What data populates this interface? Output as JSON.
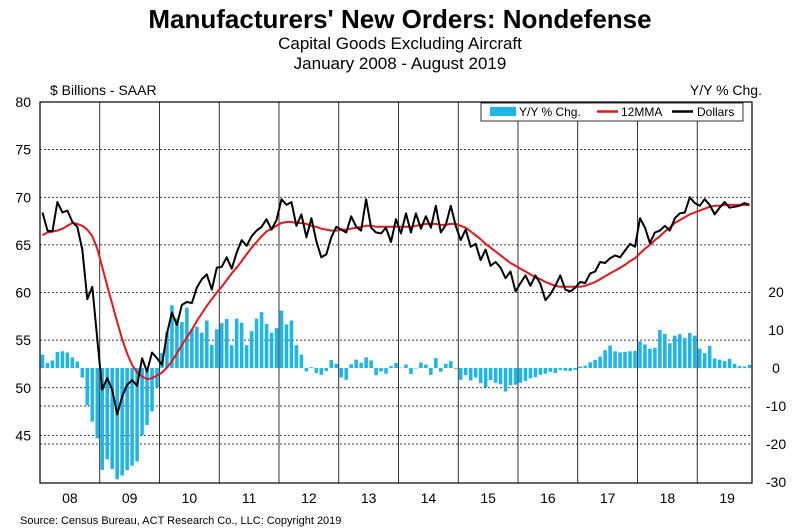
{
  "header": {
    "title": "Manufacturers' New Orders: Nondefense",
    "subtitle": "Capital Goods Excluding Aircraft",
    "period": "January 2008 - August 2019"
  },
  "source": "Source: Census Bureau, ACT Research Co., LLC: Copyright 2019",
  "colors": {
    "bars": "#1fb5e8",
    "mma": "#e3161c",
    "dollars": "#000000",
    "grid": "#000000"
  },
  "chart_data": {
    "type": "bar+line",
    "left_axis": {
      "label": "$ Billions - SAAR",
      "ylim": [
        40,
        80
      ],
      "ticks": [
        "80",
        "75",
        "70",
        "65",
        "60",
        "55",
        "50",
        "45"
      ]
    },
    "right_axis": {
      "label": "Y/Y % Chg.",
      "ylim": [
        -30,
        20
      ],
      "ticks": [
        "20",
        "10",
        "0",
        "-10",
        "-20",
        "-30"
      ]
    },
    "x_labels": [
      "08",
      "09",
      "10",
      "11",
      "12",
      "13",
      "14",
      "15",
      "16",
      "17",
      "18",
      "19"
    ],
    "legend": {
      "position": "top-right",
      "entries": [
        "Y/Y % Chg.",
        "12MMA",
        "Dollars"
      ]
    },
    "series": [
      {
        "name": "Dollars",
        "axis": "left",
        "values": [
          68.4,
          66.5,
          66.4,
          69.5,
          68.4,
          68.6,
          67.4,
          66.9,
          64.5,
          59.3,
          60.6,
          55.1,
          49.8,
          51.0,
          49.8,
          47.2,
          49.1,
          50.3,
          50.8,
          50.2,
          53.1,
          51.7,
          53.7,
          53.1,
          52.4,
          55.7,
          57.9,
          56.6,
          58.7,
          59.0,
          58.9,
          60.5,
          61.4,
          61.9,
          60.3,
          62.6,
          62.7,
          63.7,
          62.5,
          64.2,
          65.5,
          64.9,
          65.9,
          66.5,
          66.9,
          67.7,
          66.6,
          67.6,
          69.8,
          69.2,
          69.5,
          67.0,
          68.2,
          65.8,
          67.8,
          65.4,
          63.7,
          64.0,
          65.8,
          66.9,
          66.6,
          66.3,
          68.0,
          66.9,
          66.5,
          69.8,
          66.8,
          66.3,
          66.2,
          66.8,
          65.3,
          67.7,
          66.2,
          68.3,
          66.3,
          68.3,
          66.7,
          68.0,
          66.8,
          69.1,
          66.3,
          67.1,
          69.1,
          67.0,
          65.5,
          66.6,
          64.8,
          65.1,
          63.4,
          64.5,
          62.8,
          63.2,
          62.6,
          61.5,
          62.2,
          60.1,
          61.0,
          61.8,
          60.7,
          61.8,
          60.9,
          59.2,
          59.8,
          60.7,
          61.8,
          60.3,
          60.1,
          60.5,
          61.1,
          61.0,
          62.0,
          62.2,
          63.2,
          63.1,
          63.6,
          63.9,
          63.7,
          64.4,
          65.1,
          64.8,
          67.8,
          66.8,
          65.2,
          66.3,
          66.5,
          67.0,
          66.5,
          67.8,
          68.3,
          68.4,
          70.0,
          69.4,
          69.1,
          69.8,
          69.2,
          68.2,
          68.9,
          69.5,
          68.9,
          69.0,
          69.1,
          69.4,
          69.2
        ]
      },
      {
        "name": "12MMA",
        "axis": "left",
        "values": [
          66.0,
          66.3,
          66.4,
          66.5,
          66.7,
          67.0,
          67.3,
          67.2,
          67.0,
          66.6,
          65.9,
          64.6,
          62.7,
          60.7,
          58.8,
          56.9,
          55.1,
          53.6,
          52.4,
          51.6,
          51.2,
          50.9,
          51.0,
          51.3,
          51.6,
          52.1,
          52.8,
          53.6,
          54.5,
          55.3,
          56.1,
          57.0,
          57.8,
          58.6,
          59.3,
          60.0,
          60.6,
          61.3,
          62.0,
          62.6,
          63.3,
          64.0,
          64.7,
          65.3,
          65.9,
          66.4,
          66.7,
          67.0,
          67.3,
          67.4,
          67.4,
          67.3,
          67.3,
          67.2,
          67.0,
          66.9,
          66.7,
          66.6,
          66.5,
          66.5,
          66.6,
          66.6,
          66.7,
          66.8,
          66.9,
          67.0,
          67.0,
          66.9,
          66.9,
          66.9,
          66.9,
          66.9,
          66.9,
          66.9,
          66.9,
          67.0,
          67.1,
          67.2,
          67.2,
          67.2,
          67.1,
          67.1,
          67.2,
          67.2,
          67.0,
          66.8,
          66.4,
          66.0,
          65.6,
          65.1,
          64.7,
          64.3,
          63.9,
          63.5,
          63.1,
          62.8,
          62.5,
          62.2,
          61.9,
          61.6,
          61.4,
          61.1,
          60.9,
          60.7,
          60.6,
          60.6,
          60.6,
          60.6,
          60.6,
          60.7,
          60.9,
          61.1,
          61.4,
          61.7,
          62.0,
          62.3,
          62.6,
          62.9,
          63.3,
          63.6,
          64.1,
          64.6,
          65.0,
          65.5,
          65.9,
          66.4,
          66.8,
          67.3,
          67.6,
          67.9,
          68.2,
          68.4,
          68.6,
          68.8,
          69.0,
          69.1,
          69.1,
          69.2,
          69.2,
          69.2,
          69.2,
          69.2,
          69.2
        ]
      },
      {
        "name": "Y/Y % Chg.",
        "axis": "right",
        "values": [
          3.5,
          1.3,
          2.0,
          4.2,
          4.4,
          4.1,
          2.8,
          1.7,
          -2.5,
          -9.8,
          -14.1,
          -18.5,
          -26.8,
          -24.0,
          -26.6,
          -29.3,
          -28.3,
          -26.9,
          -25.7,
          -24.6,
          -17.7,
          -15.0,
          -11.4,
          -5.0,
          4.0,
          9.5,
          16.5,
          13.0,
          12.1,
          15.9,
          10.2,
          10.9,
          9.3,
          12.5,
          6.1,
          10.2,
          11.8,
          12.9,
          6.0,
          13.0,
          11.9,
          6.0,
          9.7,
          13.0,
          14.7,
          11.6,
          9.3,
          10.5,
          15.1,
          11.5,
          12.5,
          6.0,
          3.5,
          -0.9,
          0.2,
          -1.3,
          -1.8,
          -0.8,
          2.1,
          1.1,
          -2.5,
          -3.1,
          1.0,
          2.2,
          1.4,
          2.8,
          2.0,
          -1.9,
          -0.9,
          -1.5,
          0.5,
          1.3,
          0.1,
          0.9,
          -1.6,
          -0.1,
          1.4,
          0.9,
          -1.8,
          2.6,
          -1.0,
          1.1,
          1.8,
          -0.2,
          -3.1,
          -1.9,
          -3.3,
          -2.5,
          -4.0,
          -5.1,
          -3.2,
          -3.9,
          -4.3,
          -6.2,
          -4.5,
          -4.4,
          -3.9,
          -3.4,
          -2.7,
          -2.4,
          -1.8,
          -1.5,
          -1.0,
          -1.3,
          -0.5,
          -0.7,
          -0.8,
          -0.5,
          0.4,
          0.6,
          1.5,
          2.1,
          3.0,
          4.7,
          5.9,
          4.4,
          4.1,
          4.2,
          4.4,
          4.5,
          7.0,
          6.2,
          5.1,
          5.3,
          10.0,
          9.0,
          6.5,
          8.5,
          8.9,
          7.9,
          9.2,
          8.5,
          5.1,
          3.9,
          5.8,
          2.5,
          2.2,
          1.8,
          2.4,
          1.1,
          0.5,
          0.4,
          0.8
        ]
      }
    ]
  }
}
